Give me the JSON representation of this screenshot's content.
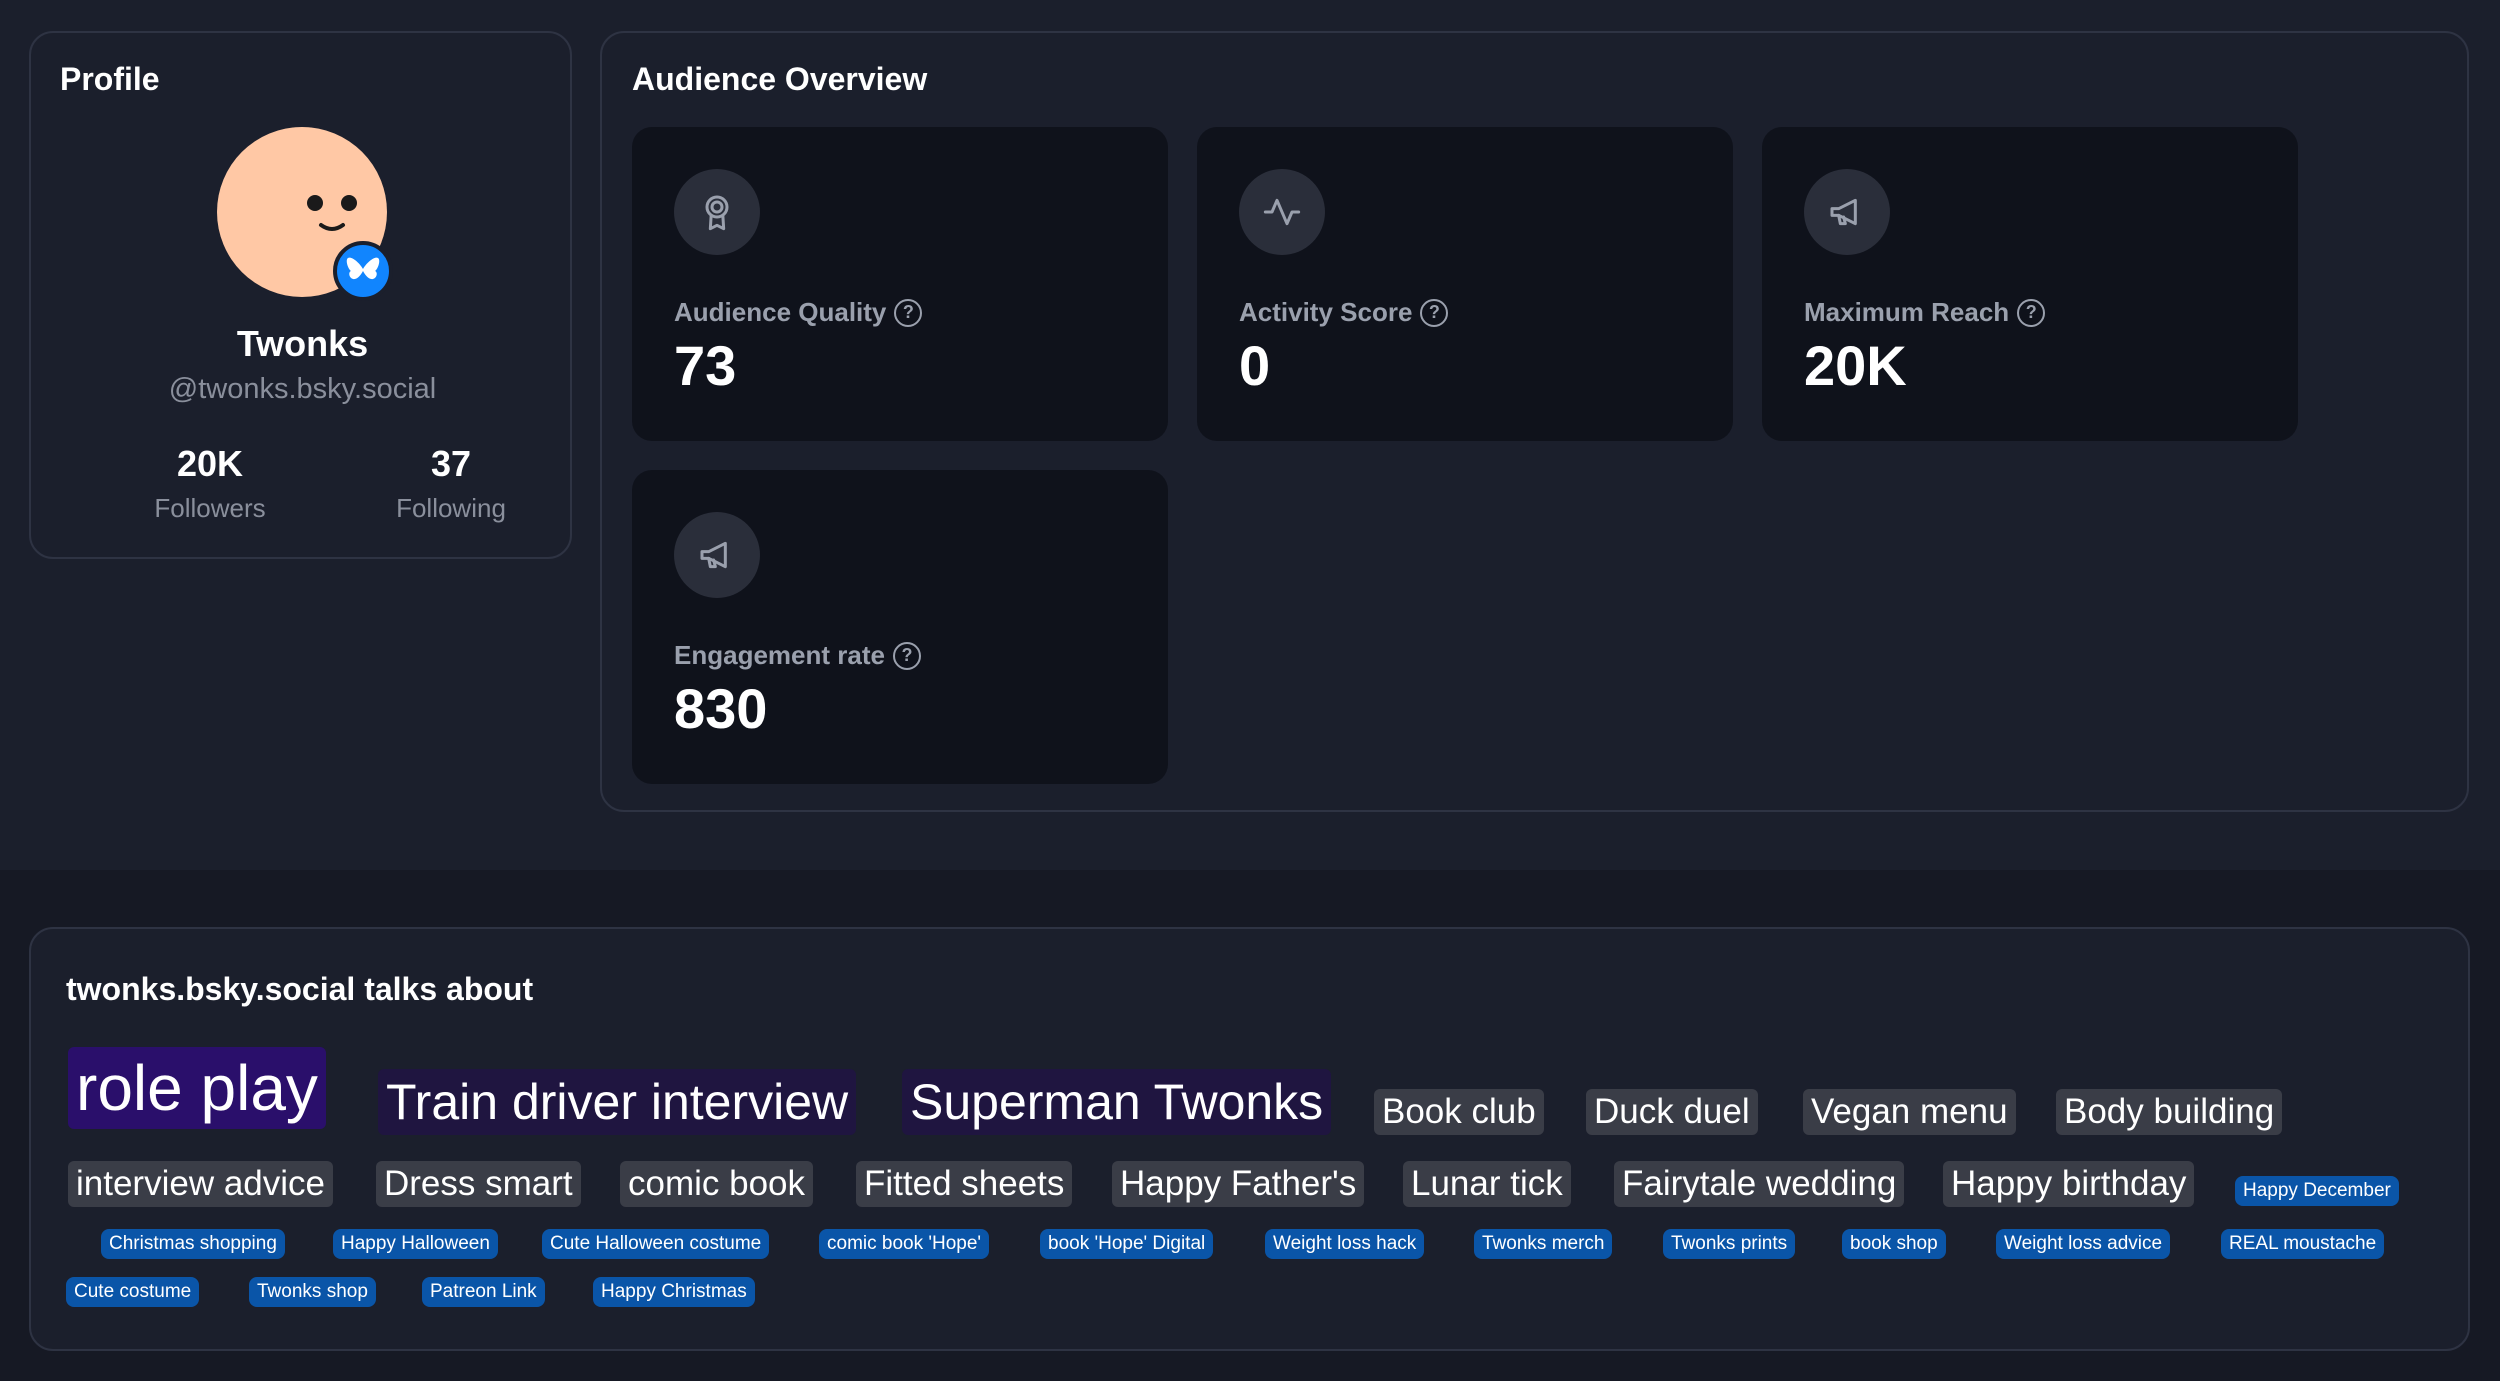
{
  "profile": {
    "title": "Profile",
    "name": "Twonks",
    "handle": "@twonks.bsky.social",
    "followers_count": "20K",
    "followers_label": "Followers",
    "following_count": "37",
    "following_label": "Following",
    "avatar_icon": "smiley-avatar",
    "badge_icon": "butterfly-icon"
  },
  "audience": {
    "title": "Audience Overview",
    "metrics": [
      {
        "label": "Audience Quality",
        "value": "73",
        "icon": "award-icon"
      },
      {
        "label": "Activity Score",
        "value": "0",
        "icon": "activity-icon"
      },
      {
        "label": "Maximum Reach",
        "value": "20K",
        "icon": "megaphone-icon"
      },
      {
        "label": "Engagement rate",
        "value": "830",
        "icon": "megaphone-icon"
      }
    ],
    "help_glyph": "?"
  },
  "topics": {
    "title": "twonks.bsky.social talks about",
    "tags": [
      "role play",
      "Train driver interview",
      "Superman Twonks",
      "Book club",
      "Duck duel",
      "Vegan menu",
      "Body building",
      "interview advice",
      "Dress smart",
      "comic book",
      "Fitted sheets",
      "Happy Father's",
      "Lunar tick",
      "Fairytale wedding",
      "Happy birthday",
      "Happy December",
      "Christmas shopping",
      "Happy Halloween",
      "Cute Halloween costume",
      "comic book 'Hope'",
      "book 'Hope' Digital",
      "Weight loss hack",
      "Twonks merch",
      "Twonks prints",
      "book shop",
      "Weight loss advice",
      "REAL moustache",
      "Cute costume",
      "Twonks shop",
      "Patreon Link",
      "Happy Christmas"
    ]
  },
  "colors": {
    "background": "#161924",
    "card": "#1b1f2c",
    "metric_card": "#0f121b",
    "avatar": "#ffc8a5",
    "badge": "#1185fe",
    "tag_small": "#0a55a8"
  }
}
